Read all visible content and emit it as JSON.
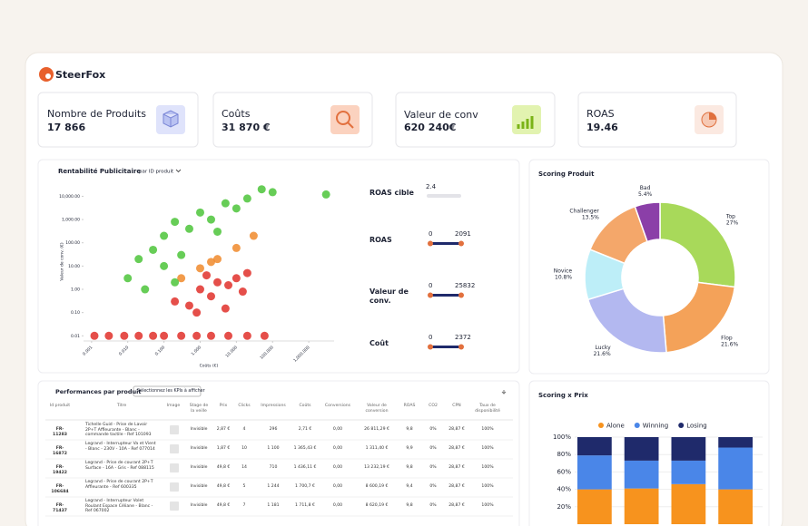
{
  "header": {
    "logo": "SteerFox"
  },
  "kpis": [
    {
      "label": "Nombre de Produits",
      "value": "17 866"
    },
    {
      "label": "Coûts",
      "value": "31 870 €"
    },
    {
      "label": "Valeur de conv",
      "value": "620 240€"
    },
    {
      "label": "ROAS",
      "value": "19.46"
    }
  ],
  "chart_data": [
    {
      "type": "scatter",
      "title": "Rentabilité Publicitaire",
      "subtitle": "par ID produit",
      "x_label": "Coûts (€)",
      "y_label": "Valeur de conv. (€)",
      "xlog": true,
      "ylog": true,
      "xlim": [
        0.0006,
        5000
      ],
      "ylim": [
        0.006,
        40000
      ],
      "xticks": [
        0.001,
        {
          "value": 0.01,
          "label": "0.010"
        },
        {
          "value": 0.1,
          "label": "0.100"
        },
        {
          "value": 1,
          "label": "1.000"
        },
        {
          "value": 10,
          "label": "10.000"
        },
        {
          "value": 100,
          "label": "100.000"
        },
        {
          "value": 1000,
          "label": "1,000.000"
        }
      ],
      "yticks": [
        0.01,
        {
          "value": 0.1,
          "label": "0.10"
        },
        {
          "value": 1,
          "label": "1.00"
        },
        {
          "value": 10,
          "label": "10.00"
        },
        {
          "value": 100,
          "label": "100.00"
        },
        {
          "value": 1000,
          "label": "1,000.00"
        },
        {
          "value": 10000,
          "label": "10,000.00"
        }
      ],
      "series": [
        {
          "color": "#e0302a",
          "x": [
            0.0012,
            0.003,
            0.008,
            0.02,
            0.05,
            0.1,
            0.3,
            0.8,
            2,
            6,
            20,
            60,
            0.2,
            0.5,
            1,
            2,
            3,
            6,
            10,
            20,
            5,
            0.8,
            1.5,
            15
          ],
          "y": [
            0.01,
            0.01,
            0.01,
            0.01,
            0.01,
            0.01,
            0.01,
            0.01,
            0.01,
            0.01,
            0.01,
            0.01,
            0.3,
            0.2,
            1,
            0.5,
            2,
            1.5,
            3,
            5,
            0.15,
            0.1,
            4,
            0.8
          ]
        },
        {
          "color": "#f08a2c",
          "x": [
            0.3,
            1,
            3,
            10,
            30,
            2
          ],
          "y": [
            3,
            8,
            20,
            60,
            200,
            15
          ]
        },
        {
          "color": "#4cc43a",
          "x": [
            0.01,
            0.02,
            0.05,
            0.1,
            0.2,
            0.5,
            1,
            2,
            5,
            20,
            50,
            0.03,
            0.3,
            0.1,
            3,
            10,
            0.2,
            100,
            3000
          ],
          "y": [
            3,
            20,
            50,
            200,
            800,
            400,
            2000,
            1000,
            5000,
            8000,
            20000,
            1,
            30,
            10,
            300,
            3000,
            2,
            15000,
            12000
          ]
        }
      ]
    },
    {
      "type": "donut",
      "title": "Scoring Produit",
      "categories": [
        "Top",
        "Flop",
        "Lucky",
        "Novice",
        "Challenger",
        "Bad"
      ],
      "values": [
        27,
        21.6,
        21.6,
        10.8,
        13.5,
        5.4
      ],
      "value_labels": [
        "27%",
        "21.6%",
        "21.6%",
        "10.8%",
        "13.5%",
        "5.4%"
      ],
      "colors": [
        "#a8d95a",
        "#f4a259",
        "#b3b8f0",
        "#bdeef8",
        "#f4a76a",
        "#8b3fa8"
      ]
    },
    {
      "type": "stacked_bar",
      "title": "Scoring x Prix",
      "categories": [
        null,
        null,
        null,
        null
      ],
      "ylim": [
        0,
        100
      ],
      "yticks": [
        {
          "value": 20,
          "label": "20%"
        },
        {
          "value": 40,
          "label": "40%"
        },
        {
          "value": 60,
          "label": "60%"
        },
        {
          "value": 80,
          "label": "80%"
        },
        {
          "value": 100,
          "label": "100%"
        }
      ],
      "grid": true,
      "series": [
        {
          "name": "Alone",
          "color": "#f7931e",
          "values": [
            40,
            41,
            46,
            40
          ]
        },
        {
          "name": "Winning",
          "color": "#4a86e8",
          "values": [
            39,
            32,
            27,
            48
          ]
        },
        {
          "name": "Losing",
          "color": "#1f2a6b",
          "values": [
            21,
            27,
            27,
            12
          ]
        }
      ]
    }
  ],
  "filters": [
    {
      "label": "ROAS cible",
      "value": 2.4
    },
    {
      "label": "ROAS",
      "min": 0,
      "max": 2091
    },
    {
      "label": "Valeur de conv.",
      "min": 0,
      "max": 25832
    },
    {
      "label": "Coût",
      "min": 0,
      "max": 2372
    }
  ],
  "table": {
    "title": "Performances par produit",
    "button": "Sélectionnez les KPIs à afficher",
    "columns": [
      "Id produit",
      "Titre",
      "Image",
      "Stage de la veille",
      "Prix",
      "Clicks",
      "Impressions",
      "Coûts",
      "Conversions",
      "Valeur de conversion",
      "ROAS",
      "CO2",
      "CPN",
      "Taux de disponibilité"
    ],
    "rows": [
      [
        "FR-11283",
        "Tichelle Guid - Prise de Lavoir 2P+T Affleurante - Blanc - commande tactile - Ref 101093",
        "Invisible",
        "2,87 €",
        "4",
        "296",
        "2,71 €",
        "0,00",
        "26 811,29 €",
        "9,8",
        "0%",
        "28,87 €",
        "100%"
      ],
      [
        "FR-16872",
        "Legrand - Interrupteur Va et Vient - Blanc - 230V - 10A - Ref 077014",
        "Invisible",
        "1,87 €",
        "10",
        "1 100",
        "1 365,43 €",
        "0,00",
        "1 311,40 €",
        "9,9",
        "0%",
        "28,87 €",
        "100%"
      ],
      [
        "FR-19422",
        "Legrand - Prise de courant 2P+T Surface - 16A - Gris - Ref 088115",
        "Invisible",
        "49,8 €",
        "14",
        "710",
        "1 436,11 €",
        "0,00",
        "13 232,19 €",
        "9,8",
        "0%",
        "28,87 €",
        "100%"
      ],
      [
        "FR-106684",
        "Legrand - Prise de courant 2P+T Affleurante - Ref 600335",
        "Invisible",
        "49,8 €",
        "5",
        "1 244",
        "1 700,7 €",
        "0,00",
        "8 600,19 €",
        "9,4",
        "0%",
        "28,87 €",
        "100%"
      ],
      [
        "FR-71437",
        "Legrand - Interrupteur Volet Roulant Espace Céliane - Blanc - Ref 067002",
        "Invisible",
        "49,8 €",
        "7",
        "1 181",
        "1 711,8 €",
        "0,00",
        "8 620,19 €",
        "9,8",
        "0%",
        "28,87 €",
        "100%"
      ]
    ]
  }
}
